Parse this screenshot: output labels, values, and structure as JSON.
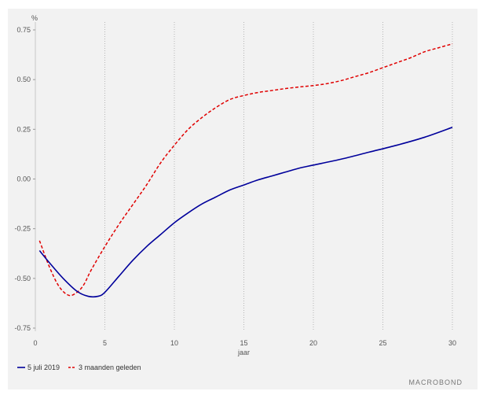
{
  "chart_data": {
    "type": "line",
    "ylabel": "%",
    "xlabel": "jaar",
    "xlim": [
      0,
      30
    ],
    "ylim": [
      -0.75,
      0.75
    ],
    "x_ticks": [
      0,
      5,
      10,
      15,
      20,
      25,
      30
    ],
    "y_ticks": [
      "0.75",
      "0.50",
      "0.25",
      "0.00",
      "-0.25",
      "-0.50",
      "-0.75"
    ],
    "y_tick_values": [
      0.75,
      0.5,
      0.25,
      0.0,
      -0.25,
      -0.5,
      -0.75
    ],
    "grid": "vertical dotted",
    "legend": "bottom-left",
    "series": [
      {
        "name": "5 juli 2019",
        "color": "#00009b",
        "style": "solid",
        "points": [
          [
            0.3,
            -0.36
          ],
          [
            1,
            -0.42
          ],
          [
            2,
            -0.5
          ],
          [
            3,
            -0.565
          ],
          [
            3.8,
            -0.59
          ],
          [
            4.5,
            -0.59
          ],
          [
            5,
            -0.57
          ],
          [
            6,
            -0.49
          ],
          [
            7,
            -0.41
          ],
          [
            8,
            -0.34
          ],
          [
            9,
            -0.28
          ],
          [
            10,
            -0.22
          ],
          [
            11,
            -0.17
          ],
          [
            12,
            -0.125
          ],
          [
            13,
            -0.09
          ],
          [
            14,
            -0.055
          ],
          [
            15,
            -0.03
          ],
          [
            16,
            -0.005
          ],
          [
            17,
            0.015
          ],
          [
            18,
            0.035
          ],
          [
            19,
            0.055
          ],
          [
            20,
            0.07
          ],
          [
            22,
            0.1
          ],
          [
            24,
            0.135
          ],
          [
            26,
            0.17
          ],
          [
            28,
            0.21
          ],
          [
            30,
            0.26
          ]
        ]
      },
      {
        "name": "3 maanden geleden",
        "color": "#e00000",
        "style": "dashed",
        "points": [
          [
            0.3,
            -0.31
          ],
          [
            1,
            -0.44
          ],
          [
            1.7,
            -0.54
          ],
          [
            2.4,
            -0.585
          ],
          [
            3,
            -0.57
          ],
          [
            3.5,
            -0.53
          ],
          [
            4,
            -0.46
          ],
          [
            5,
            -0.34
          ],
          [
            6,
            -0.23
          ],
          [
            7,
            -0.13
          ],
          [
            8,
            -0.03
          ],
          [
            9,
            0.08
          ],
          [
            10,
            0.17
          ],
          [
            11,
            0.25
          ],
          [
            12,
            0.31
          ],
          [
            13,
            0.36
          ],
          [
            14,
            0.4
          ],
          [
            15,
            0.42
          ],
          [
            16,
            0.435
          ],
          [
            17,
            0.445
          ],
          [
            18,
            0.455
          ],
          [
            19,
            0.463
          ],
          [
            20,
            0.47
          ],
          [
            21,
            0.48
          ],
          [
            22,
            0.495
          ],
          [
            23,
            0.515
          ],
          [
            24,
            0.535
          ],
          [
            25,
            0.56
          ],
          [
            26,
            0.585
          ],
          [
            27,
            0.61
          ],
          [
            28,
            0.64
          ],
          [
            29,
            0.66
          ],
          [
            30,
            0.68
          ]
        ]
      }
    ]
  },
  "brand_text": "MACROBOND"
}
